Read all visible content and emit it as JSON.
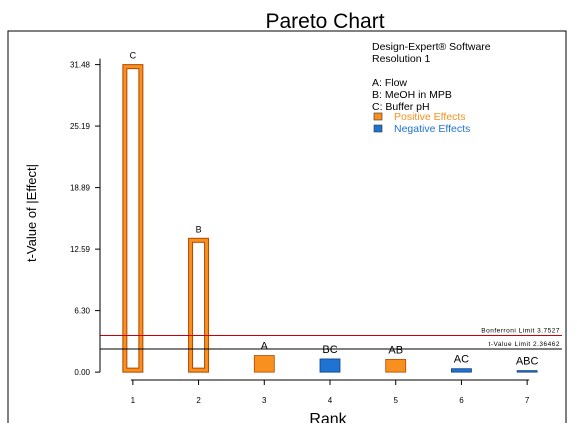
{
  "chart_data": {
    "type": "bar",
    "title": "Pareto Chart",
    "xlabel": "Rank",
    "ylabel": "t-Value of |Effect|",
    "ylim": [
      -0.6,
      34.0
    ],
    "xlim": [
      0.5,
      7.5
    ],
    "y_ticks": [
      "0.00",
      "6.30",
      "12.59",
      "18.89",
      "25.19",
      "31.48"
    ],
    "y_tick_values": [
      0.0,
      6.3,
      12.59,
      18.89,
      25.19,
      31.48
    ],
    "x_ticks": [
      "1",
      "2",
      "3",
      "4",
      "5",
      "6",
      "7"
    ],
    "bars": [
      {
        "rank": 1,
        "label": "C",
        "value": 31.48,
        "effect": "positive",
        "style": "outline"
      },
      {
        "rank": 2,
        "label": "B",
        "value": 13.7,
        "effect": "positive",
        "style": "outline"
      },
      {
        "rank": 3,
        "label": "A",
        "value": 1.7,
        "effect": "positive",
        "style": "filled"
      },
      {
        "rank": 4,
        "label": "BC",
        "value": 1.35,
        "effect": "negative",
        "style": "filled"
      },
      {
        "rank": 5,
        "label": "AB",
        "value": 1.3,
        "effect": "positive",
        "style": "filled"
      },
      {
        "rank": 6,
        "label": "AC",
        "value": 0.35,
        "effect": "negative",
        "style": "filled"
      },
      {
        "rank": 7,
        "label": "ABC",
        "value": 0.05,
        "effect": "negative",
        "style": "filled"
      }
    ],
    "limits": [
      {
        "name": "Bonferroni Limit",
        "label": "Bonferroni Limit 3.7527",
        "value": 3.7527,
        "color": "#cc0000"
      },
      {
        "name": "t-Value Limit",
        "label": "t-Value Limit 2.36462",
        "value": 2.36462,
        "color": "#000000"
      }
    ],
    "grid": false,
    "legend_placement": "top-right",
    "colors": {
      "positive": "#f7901e",
      "negative": "#1f73d2",
      "positive_text": "#f7901e",
      "negative_text": "#1f73d2",
      "bar_outline": "#b34700",
      "axis": "#000000"
    },
    "info": {
      "software": "Design-Expert® Software",
      "resolution": "Resolution 1",
      "factors": [
        "A: Flow",
        "B: MeOH in MPB",
        "C: Buffer pH"
      ]
    },
    "legend": [
      {
        "label": "Positive Effects",
        "effect": "positive"
      },
      {
        "label": "Negative Effects",
        "effect": "negative"
      }
    ]
  }
}
